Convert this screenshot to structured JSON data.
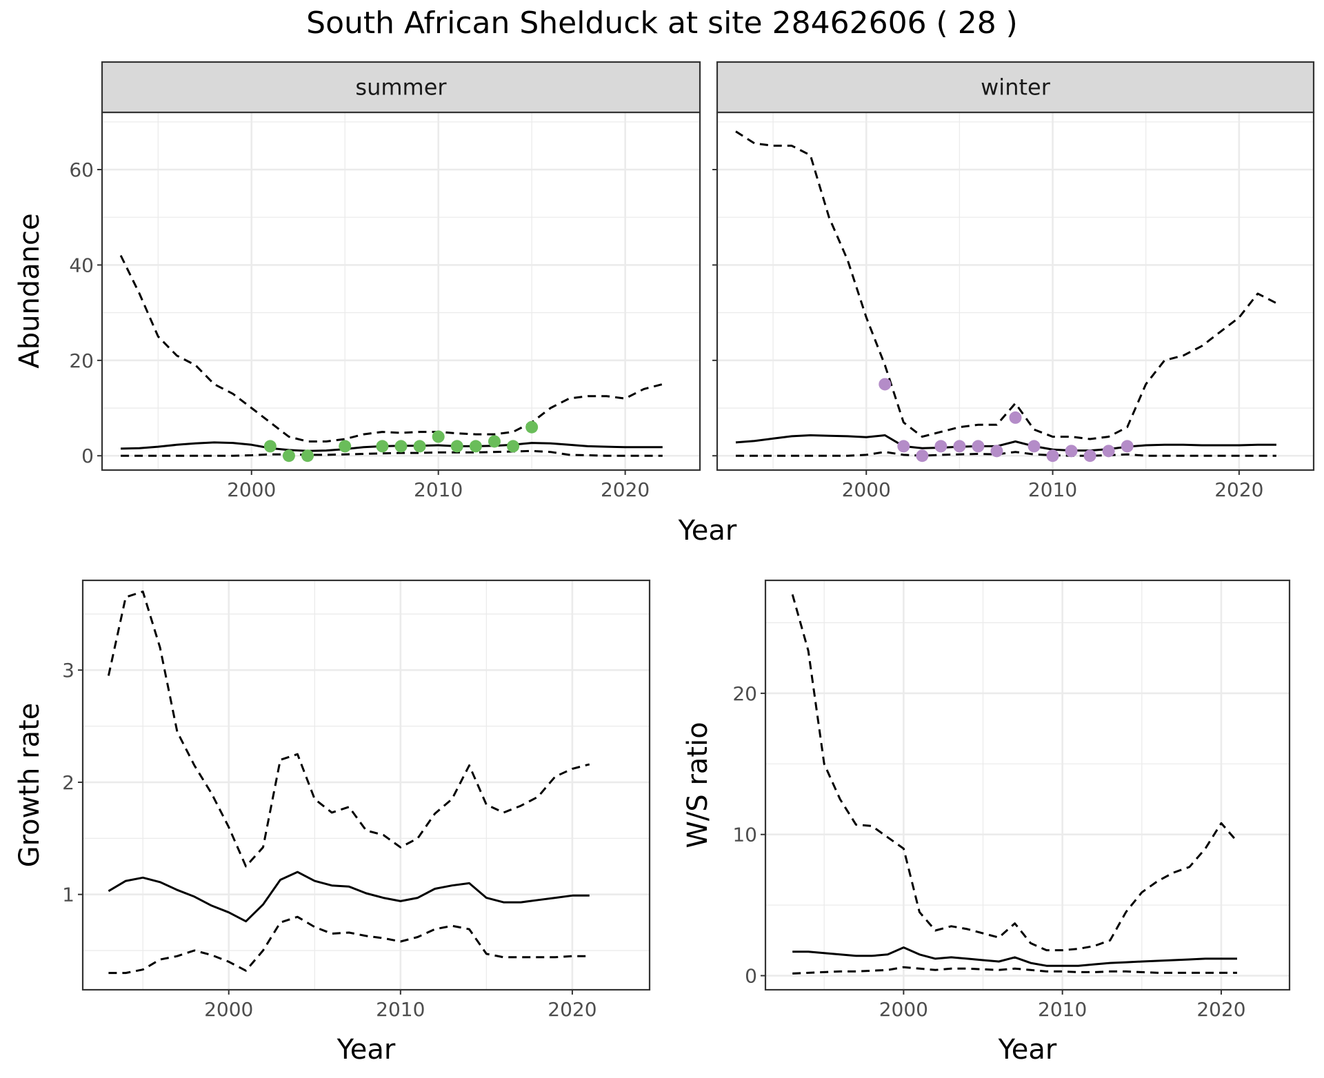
{
  "title": "South African Shelduck at site 28462606 ( 28 )",
  "colors": {
    "summer_points": "#6abd5a",
    "winter_points": "#b48cc8",
    "lines": "#000000",
    "grid": "#ebebeb",
    "strip_bg": "#d9d9d9",
    "panel_border": "#333333"
  },
  "chart_data": [
    {
      "type": "line",
      "panel": "summer",
      "facet_label": "summer",
      "xlabel": "Year",
      "ylabel": "Abundance",
      "xlim": [
        1992,
        2024
      ],
      "ylim": [
        -3,
        72
      ],
      "xticks": [
        2000,
        2010,
        2020
      ],
      "yticks": [
        0,
        20,
        40,
        60
      ],
      "grid": true,
      "series": [
        {
          "role": "mean",
          "style": "solid",
          "x": [
            1993,
            1994,
            1995,
            1996,
            1997,
            1998,
            1999,
            2000,
            2001,
            2002,
            2003,
            2004,
            2005,
            2006,
            2007,
            2008,
            2009,
            2010,
            2011,
            2012,
            2013,
            2014,
            2015,
            2016,
            2017,
            2018,
            2019,
            2020,
            2021,
            2022
          ],
          "y": [
            1.5,
            1.6,
            1.9,
            2.3,
            2.6,
            2.8,
            2.7,
            2.3,
            1.6,
            1.2,
            1.0,
            1.1,
            1.4,
            1.8,
            2.0,
            2.1,
            2.1,
            2.2,
            2.0,
            2.0,
            2.1,
            2.3,
            2.7,
            2.6,
            2.3,
            2.0,
            1.9,
            1.8,
            1.8,
            1.8
          ]
        },
        {
          "role": "upper",
          "style": "dashed",
          "x": [
            1993,
            1994,
            1995,
            1996,
            1997,
            1998,
            1999,
            2000,
            2001,
            2002,
            2003,
            2004,
            2005,
            2006,
            2007,
            2008,
            2009,
            2010,
            2011,
            2012,
            2013,
            2014,
            2015,
            2016,
            2017,
            2018,
            2019,
            2020,
            2021,
            2022
          ],
          "y": [
            42,
            34,
            25,
            21,
            19,
            15,
            13,
            10,
            7,
            4,
            3,
            3,
            3.5,
            4.5,
            5,
            4.8,
            5,
            5,
            4.7,
            4.5,
            4.5,
            5,
            7,
            10,
            12,
            12.5,
            12.5,
            12,
            14,
            15
          ]
        },
        {
          "role": "lower",
          "style": "dashed",
          "x": [
            1993,
            1994,
            1995,
            1996,
            1997,
            1998,
            1999,
            2000,
            2001,
            2002,
            2003,
            2004,
            2005,
            2006,
            2007,
            2008,
            2009,
            2010,
            2011,
            2012,
            2013,
            2014,
            2015,
            2016,
            2017,
            2018,
            2019,
            2020,
            2021,
            2022
          ],
          "y": [
            0,
            0,
            0,
            0,
            0,
            0,
            0,
            0.1,
            0.3,
            0.3,
            0.2,
            0.2,
            0.3,
            0.4,
            0.5,
            0.6,
            0.6,
            0.7,
            0.7,
            0.7,
            0.8,
            0.9,
            1.0,
            0.8,
            0.2,
            0.1,
            0,
            0,
            0,
            0
          ]
        }
      ],
      "points": {
        "x": [
          2001,
          2002,
          2003,
          2005,
          2007,
          2008,
          2009,
          2010,
          2011,
          2012,
          2013,
          2014,
          2015
        ],
        "y": [
          2,
          0,
          0,
          2,
          2,
          2,
          2,
          4,
          2,
          2,
          3,
          2,
          6
        ]
      }
    },
    {
      "type": "line",
      "panel": "winter",
      "facet_label": "winter",
      "xlabel": "Year",
      "ylabel": "Abundance",
      "xlim": [
        1992,
        2024
      ],
      "ylim": [
        -3,
        72
      ],
      "xticks": [
        2000,
        2010,
        2020
      ],
      "yticks": [
        0,
        20,
        40,
        60
      ],
      "grid": true,
      "series": [
        {
          "role": "mean",
          "style": "solid",
          "x": [
            1993,
            1994,
            1995,
            1996,
            1997,
            1998,
            1999,
            2000,
            2001,
            2002,
            2003,
            2004,
            2005,
            2006,
            2007,
            2008,
            2009,
            2010,
            2011,
            2012,
            2013,
            2014,
            2015,
            2016,
            2017,
            2018,
            2019,
            2020,
            2021,
            2022
          ],
          "y": [
            2.8,
            3.1,
            3.6,
            4.1,
            4.3,
            4.2,
            4.1,
            3.9,
            4.3,
            2.0,
            1.6,
            1.7,
            1.9,
            2.0,
            2.0,
            3.0,
            2.0,
            1.3,
            1.1,
            1.1,
            1.4,
            1.9,
            2.2,
            2.3,
            2.3,
            2.2,
            2.2,
            2.2,
            2.3,
            2.3
          ]
        },
        {
          "role": "upper",
          "style": "dashed",
          "x": [
            1993,
            1994,
            1995,
            1996,
            1997,
            1998,
            1999,
            2000,
            2001,
            2002,
            2003,
            2004,
            2005,
            2006,
            2007,
            2008,
            2009,
            2010,
            2011,
            2012,
            2013,
            2014,
            2015,
            2016,
            2017,
            2018,
            2019,
            2020,
            2021,
            2022
          ],
          "y": [
            68,
            65.5,
            65,
            65,
            63,
            50,
            41,
            29,
            19,
            7,
            4,
            5,
            6,
            6.5,
            6.5,
            11,
            5.5,
            4,
            4,
            3.5,
            4,
            6,
            15,
            20,
            21,
            23,
            26,
            29,
            34,
            32
          ]
        },
        {
          "role": "lower",
          "style": "dashed",
          "x": [
            1993,
            1994,
            1995,
            1996,
            1997,
            1998,
            1999,
            2000,
            2001,
            2002,
            2003,
            2004,
            2005,
            2006,
            2007,
            2008,
            2009,
            2010,
            2011,
            2012,
            2013,
            2014,
            2015,
            2016,
            2017,
            2018,
            2019,
            2020,
            2021,
            2022
          ],
          "y": [
            0,
            0,
            0,
            0,
            0,
            0,
            0,
            0.2,
            0.8,
            0.2,
            0,
            0.2,
            0.3,
            0.4,
            0.3,
            0.8,
            0.3,
            0.1,
            0,
            0,
            0.1,
            0.3,
            0,
            0,
            0,
            0,
            0,
            0,
            0,
            0
          ]
        }
      ],
      "points": {
        "x": [
          2001,
          2002,
          2003,
          2004,
          2005,
          2006,
          2007,
          2008,
          2009,
          2010,
          2011,
          2012,
          2013,
          2014
        ],
        "y": [
          15,
          2,
          0,
          2,
          2,
          2,
          1,
          8,
          2,
          0,
          1,
          0,
          1,
          2
        ]
      }
    },
    {
      "type": "line",
      "panel": "growth",
      "xlabel": "Year",
      "ylabel": "Growth rate",
      "xlim": [
        1991.5,
        2024.5
      ],
      "ylim": [
        0.15,
        3.8
      ],
      "xticks": [
        2000,
        2010,
        2020
      ],
      "yticks": [
        1,
        2,
        3
      ],
      "grid": true,
      "series": [
        {
          "role": "mean",
          "style": "solid",
          "x": [
            1993,
            1994,
            1995,
            1996,
            1997,
            1998,
            1999,
            2000,
            2001,
            2002,
            2003,
            2004,
            2005,
            2006,
            2007,
            2008,
            2009,
            2010,
            2011,
            2012,
            2013,
            2014,
            2015,
            2016,
            2017,
            2018,
            2019,
            2020,
            2021
          ],
          "y": [
            1.03,
            1.12,
            1.15,
            1.11,
            1.04,
            0.98,
            0.9,
            0.84,
            0.76,
            0.91,
            1.13,
            1.2,
            1.12,
            1.08,
            1.07,
            1.01,
            0.97,
            0.94,
            0.97,
            1.05,
            1.08,
            1.1,
            0.97,
            0.93,
            0.93,
            0.95,
            0.97,
            0.99,
            0.99
          ]
        },
        {
          "role": "upper",
          "style": "dashed",
          "x": [
            1993,
            1994,
            1995,
            1996,
            1997,
            1998,
            1999,
            2000,
            2001,
            2002,
            2003,
            2004,
            2005,
            2006,
            2007,
            2008,
            2009,
            2010,
            2011,
            2012,
            2013,
            2014,
            2015,
            2016,
            2017,
            2018,
            2019,
            2020,
            2021
          ],
          "y": [
            2.95,
            3.65,
            3.7,
            3.2,
            2.45,
            2.15,
            1.9,
            1.6,
            1.25,
            1.42,
            2.2,
            2.25,
            1.85,
            1.73,
            1.78,
            1.57,
            1.53,
            1.42,
            1.5,
            1.72,
            1.85,
            2.15,
            1.8,
            1.73,
            1.79,
            1.87,
            2.05,
            2.12,
            2.16
          ]
        },
        {
          "role": "lower",
          "style": "dashed",
          "x": [
            1993,
            1994,
            1995,
            1996,
            1997,
            1998,
            1999,
            2000,
            2001,
            2002,
            2003,
            2004,
            2005,
            2006,
            2007,
            2008,
            2009,
            2010,
            2011,
            2012,
            2013,
            2014,
            2015,
            2016,
            2017,
            2018,
            2019,
            2020,
            2021
          ],
          "y": [
            0.3,
            0.3,
            0.33,
            0.42,
            0.45,
            0.5,
            0.46,
            0.4,
            0.32,
            0.5,
            0.75,
            0.8,
            0.71,
            0.65,
            0.66,
            0.63,
            0.61,
            0.58,
            0.62,
            0.69,
            0.72,
            0.69,
            0.47,
            0.44,
            0.44,
            0.44,
            0.44,
            0.45,
            0.45
          ]
        }
      ]
    },
    {
      "type": "line",
      "panel": "ratio",
      "xlabel": "Year",
      "ylabel": "W/S ratio",
      "xlim": [
        1991.3,
        2024.3
      ],
      "ylim": [
        -1,
        28
      ],
      "xticks": [
        2000,
        2010,
        2020
      ],
      "yticks": [
        0,
        10,
        20
      ],
      "grid": true,
      "series": [
        {
          "role": "mean",
          "style": "solid",
          "x": [
            1993,
            1994,
            1995,
            1996,
            1997,
            1998,
            1999,
            2000,
            2001,
            2002,
            2003,
            2004,
            2005,
            2006,
            2007,
            2008,
            2009,
            2010,
            2011,
            2012,
            2013,
            2014,
            2015,
            2016,
            2017,
            2018,
            2019,
            2020,
            2021
          ],
          "y": [
            1.7,
            1.7,
            1.6,
            1.5,
            1.4,
            1.4,
            1.5,
            2.0,
            1.5,
            1.2,
            1.3,
            1.2,
            1.1,
            1.0,
            1.3,
            0.9,
            0.7,
            0.7,
            0.7,
            0.8,
            0.9,
            0.95,
            1.0,
            1.05,
            1.1,
            1.15,
            1.2,
            1.2,
            1.2
          ]
        },
        {
          "role": "upper",
          "style": "dashed",
          "x": [
            1993,
            1994,
            1995,
            1996,
            1997,
            1998,
            1999,
            2000,
            2001,
            2002,
            2003,
            2004,
            2005,
            2006,
            2007,
            2008,
            2009,
            2010,
            2011,
            2012,
            2013,
            2014,
            2015,
            2016,
            2017,
            2018,
            2019,
            2020,
            2021
          ],
          "y": [
            27,
            23,
            15,
            12.5,
            10.7,
            10.6,
            9.8,
            9,
            4.5,
            3.2,
            3.5,
            3.3,
            3,
            2.7,
            3.7,
            2.3,
            1.8,
            1.8,
            1.9,
            2.1,
            2.5,
            4.5,
            5.9,
            6.7,
            7.3,
            7.7,
            9,
            10.8,
            9.5
          ]
        },
        {
          "role": "lower",
          "style": "dashed",
          "x": [
            1993,
            1994,
            1995,
            1996,
            1997,
            1998,
            1999,
            2000,
            2001,
            2002,
            2003,
            2004,
            2005,
            2006,
            2007,
            2008,
            2009,
            2010,
            2011,
            2012,
            2013,
            2014,
            2015,
            2016,
            2017,
            2018,
            2019,
            2020,
            2021
          ],
          "y": [
            0.15,
            0.2,
            0.25,
            0.3,
            0.3,
            0.35,
            0.4,
            0.6,
            0.5,
            0.4,
            0.5,
            0.5,
            0.45,
            0.4,
            0.5,
            0.4,
            0.3,
            0.3,
            0.25,
            0.25,
            0.3,
            0.3,
            0.25,
            0.2,
            0.2,
            0.2,
            0.2,
            0.2,
            0.2
          ]
        }
      ]
    }
  ]
}
